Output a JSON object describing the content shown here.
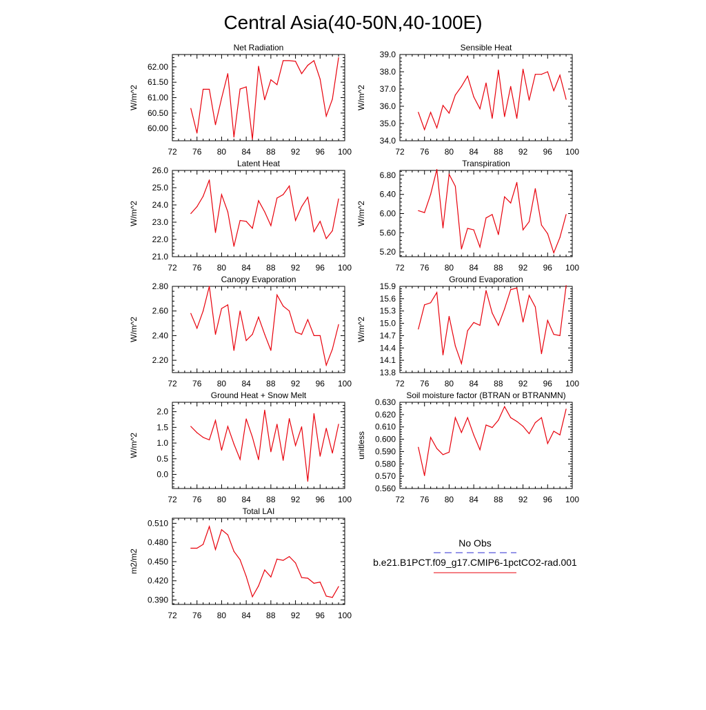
{
  "figure": {
    "title": "Central Asia(40-50N,40-100E)"
  },
  "legend": {
    "items": [
      {
        "label": "No Obs",
        "color": "#2b2bd0",
        "dash": true
      },
      {
        "label": "b.e21.B1PCT.f09_g17.CMIP6-1pctCO2-rad.001",
        "color": "#e8000b",
        "dash": false
      }
    ]
  },
  "colors": {
    "series": "#e8000b",
    "axis": "#000000",
    "obs": "#2b2bd0"
  },
  "chart_data": [
    {
      "type": "line",
      "title": "Net Radiation",
      "ylabel": "W/m^2",
      "xlim": [
        72,
        100
      ],
      "xticks": [
        "72",
        "76",
        "80",
        "84",
        "88",
        "92",
        "96",
        "100"
      ],
      "ylim": [
        59.6,
        62.4
      ],
      "yticks": [
        "60.00",
        "60.50",
        "61.00",
        "61.50",
        "62.00"
      ],
      "x": [
        75,
        76,
        77,
        78,
        79,
        80,
        81,
        82,
        83,
        84,
        85,
        86,
        87,
        88,
        89,
        90,
        91,
        92,
        93,
        94,
        95,
        96,
        97,
        98,
        99
      ],
      "series": [
        {
          "values": [
            60.65,
            59.85,
            61.27,
            61.27,
            60.12,
            60.98,
            61.78,
            59.72,
            61.28,
            61.35,
            59.65,
            62.02,
            60.93,
            61.58,
            61.42,
            62.2,
            62.2,
            62.18,
            61.78,
            62.05,
            62.2,
            61.6,
            60.4,
            60.95,
            62.3
          ]
        }
      ]
    },
    {
      "type": "line",
      "title": "Sensible Heat",
      "ylabel": "W/m^2",
      "xlim": [
        72,
        100
      ],
      "xticks": [
        "72",
        "76",
        "80",
        "84",
        "88",
        "92",
        "96",
        "100"
      ],
      "ylim": [
        34.0,
        39.0
      ],
      "yticks": [
        "34.0",
        "35.0",
        "36.0",
        "37.0",
        "38.0",
        "39.0"
      ],
      "x": [
        75,
        76,
        77,
        78,
        79,
        80,
        81,
        82,
        83,
        84,
        85,
        86,
        87,
        88,
        89,
        90,
        91,
        92,
        93,
        94,
        95,
        96,
        97,
        98,
        99
      ],
      "series": [
        {
          "values": [
            35.65,
            34.65,
            35.65,
            34.75,
            36.05,
            35.6,
            36.65,
            37.15,
            37.75,
            36.55,
            35.85,
            37.35,
            35.3,
            38.1,
            35.4,
            37.15,
            35.3,
            38.15,
            36.35,
            37.85,
            37.85,
            38.0,
            36.9,
            37.8,
            36.4
          ]
        }
      ]
    },
    {
      "type": "line",
      "title": "Latent Heat",
      "ylabel": "W/m^2",
      "xlim": [
        72,
        100
      ],
      "xticks": [
        "72",
        "76",
        "80",
        "84",
        "88",
        "92",
        "96",
        "100"
      ],
      "ylim": [
        21.0,
        26.0
      ],
      "yticks": [
        "21.0",
        "22.0",
        "23.0",
        "24.0",
        "25.0",
        "26.0"
      ],
      "x": [
        75,
        76,
        77,
        78,
        79,
        80,
        81,
        82,
        83,
        84,
        85,
        86,
        87,
        88,
        89,
        90,
        91,
        92,
        93,
        94,
        95,
        96,
        97,
        98,
        99
      ],
      "series": [
        {
          "values": [
            23.5,
            23.9,
            24.5,
            25.45,
            22.4,
            24.6,
            23.6,
            21.6,
            23.1,
            23.05,
            22.65,
            24.25,
            23.6,
            22.8,
            24.4,
            24.6,
            25.1,
            23.1,
            23.9,
            24.45,
            22.45,
            23.05,
            22.05,
            22.5,
            24.35
          ]
        }
      ]
    },
    {
      "type": "line",
      "title": "Transpiration",
      "ylabel": "W/m^2",
      "xlim": [
        72,
        100
      ],
      "xticks": [
        "72",
        "76",
        "80",
        "84",
        "88",
        "92",
        "96",
        "100"
      ],
      "ylim": [
        5.1,
        6.9
      ],
      "yticks": [
        "5.20",
        "5.60",
        "6.00",
        "6.40",
        "6.80"
      ],
      "x": [
        75,
        76,
        77,
        78,
        79,
        80,
        81,
        82,
        83,
        84,
        85,
        86,
        87,
        88,
        89,
        90,
        91,
        92,
        93,
        94,
        95,
        96,
        97,
        98,
        99
      ],
      "series": [
        {
          "values": [
            6.06,
            6.02,
            6.4,
            6.92,
            5.7,
            6.82,
            6.57,
            5.26,
            5.69,
            5.66,
            5.3,
            5.91,
            5.98,
            5.56,
            6.35,
            6.22,
            6.65,
            5.66,
            5.83,
            6.52,
            5.76,
            5.58,
            5.18,
            5.5,
            5.98
          ]
        }
      ]
    },
    {
      "type": "line",
      "title": "Canopy Evaporation",
      "ylabel": "W/m^2",
      "xlim": [
        72,
        100
      ],
      "xticks": [
        "72",
        "76",
        "80",
        "84",
        "88",
        "92",
        "96",
        "100"
      ],
      "ylim": [
        2.1,
        2.8
      ],
      "yticks": [
        "2.20",
        "2.40",
        "2.60",
        "2.80"
      ],
      "x": [
        75,
        76,
        77,
        78,
        79,
        80,
        81,
        82,
        83,
        84,
        85,
        86,
        87,
        88,
        89,
        90,
        91,
        92,
        93,
        94,
        95,
        96,
        97,
        98,
        99
      ],
      "series": [
        {
          "values": [
            2.58,
            2.46,
            2.6,
            2.8,
            2.41,
            2.62,
            2.65,
            2.28,
            2.6,
            2.36,
            2.41,
            2.55,
            2.41,
            2.28,
            2.73,
            2.64,
            2.6,
            2.43,
            2.41,
            2.53,
            2.4,
            2.4,
            2.16,
            2.29,
            2.49
          ]
        }
      ]
    },
    {
      "type": "line",
      "title": "Ground Evaporation",
      "ylabel": "W/m^2",
      "xlim": [
        72,
        100
      ],
      "xticks": [
        "72",
        "76",
        "80",
        "84",
        "88",
        "92",
        "96",
        "100"
      ],
      "ylim": [
        13.8,
        15.9
      ],
      "yticks": [
        "13.8",
        "14.1",
        "14.4",
        "14.7",
        "15.0",
        "15.3",
        "15.6",
        "15.9"
      ],
      "x": [
        75,
        76,
        77,
        78,
        79,
        80,
        81,
        82,
        83,
        84,
        85,
        86,
        87,
        88,
        89,
        90,
        91,
        92,
        93,
        94,
        95,
        96,
        97,
        98,
        99
      ],
      "series": [
        {
          "values": [
            14.86,
            15.45,
            15.5,
            15.75,
            14.23,
            15.17,
            14.45,
            14.02,
            14.82,
            15.02,
            14.95,
            15.8,
            15.25,
            14.95,
            15.35,
            15.82,
            15.86,
            15.03,
            15.68,
            15.4,
            14.26,
            15.07,
            14.73,
            14.7,
            15.92
          ]
        }
      ]
    },
    {
      "type": "line",
      "title": "Ground Heat + Snow Melt",
      "ylabel": "W/m^2",
      "xlim": [
        72,
        100
      ],
      "xticks": [
        "72",
        "76",
        "80",
        "84",
        "88",
        "92",
        "96",
        "100"
      ],
      "ylim": [
        -0.45,
        2.3
      ],
      "yticks": [
        "0.0",
        "0.5",
        "1.0",
        "1.5",
        "2.0"
      ],
      "x": [
        75,
        76,
        77,
        78,
        79,
        80,
        81,
        82,
        83,
        84,
        85,
        86,
        87,
        88,
        89,
        90,
        91,
        92,
        93,
        94,
        95,
        96,
        97,
        98,
        99
      ],
      "series": [
        {
          "values": [
            1.53,
            1.33,
            1.18,
            1.1,
            1.72,
            0.77,
            1.53,
            0.97,
            0.48,
            1.77,
            1.19,
            0.47,
            2.05,
            0.72,
            1.6,
            0.45,
            1.78,
            0.92,
            1.52,
            -0.22,
            1.94,
            0.58,
            1.47,
            0.68,
            1.6
          ]
        }
      ]
    },
    {
      "type": "line",
      "title": "Soil moisture factor (BTRAN or BTRANMN)",
      "ylabel": "unitless",
      "xlim": [
        72,
        100
      ],
      "xticks": [
        "72",
        "76",
        "80",
        "84",
        "88",
        "92",
        "96",
        "100"
      ],
      "ylim": [
        0.56,
        0.63
      ],
      "yticks": [
        "0.560",
        "0.570",
        "0.580",
        "0.590",
        "0.600",
        "0.610",
        "0.620",
        "0.630"
      ],
      "x": [
        75,
        76,
        77,
        78,
        79,
        80,
        81,
        82,
        83,
        84,
        85,
        86,
        87,
        88,
        89,
        90,
        91,
        92,
        93,
        94,
        95,
        96,
        97,
        98,
        99
      ],
      "series": [
        {
          "values": [
            0.5935,
            0.5705,
            0.6015,
            0.5925,
            0.5875,
            0.5895,
            0.6175,
            0.6055,
            0.6175,
            0.6035,
            0.5915,
            0.6115,
            0.6095,
            0.6155,
            0.6265,
            0.6175,
            0.6145,
            0.6105,
            0.6045,
            0.6135,
            0.6175,
            0.5965,
            0.6065,
            0.6035,
            0.6245
          ]
        }
      ]
    },
    {
      "type": "line",
      "title": "Total LAI",
      "ylabel": "m2/m2",
      "xlim": [
        72,
        100
      ],
      "xticks": [
        "72",
        "76",
        "80",
        "84",
        "88",
        "92",
        "96",
        "100"
      ],
      "ylim": [
        0.383,
        0.518
      ],
      "yticks": [
        "0.390",
        "0.420",
        "0.450",
        "0.480",
        "0.510"
      ],
      "x": [
        75,
        76,
        77,
        78,
        79,
        80,
        81,
        82,
        83,
        84,
        85,
        86,
        87,
        88,
        89,
        90,
        91,
        92,
        93,
        94,
        95,
        96,
        97,
        98,
        99
      ],
      "series": [
        {
          "values": [
            0.471,
            0.471,
            0.477,
            0.505,
            0.469,
            0.5,
            0.492,
            0.466,
            0.453,
            0.427,
            0.395,
            0.412,
            0.437,
            0.426,
            0.454,
            0.452,
            0.458,
            0.448,
            0.425,
            0.424,
            0.416,
            0.418,
            0.396,
            0.394,
            0.411
          ]
        }
      ]
    }
  ]
}
